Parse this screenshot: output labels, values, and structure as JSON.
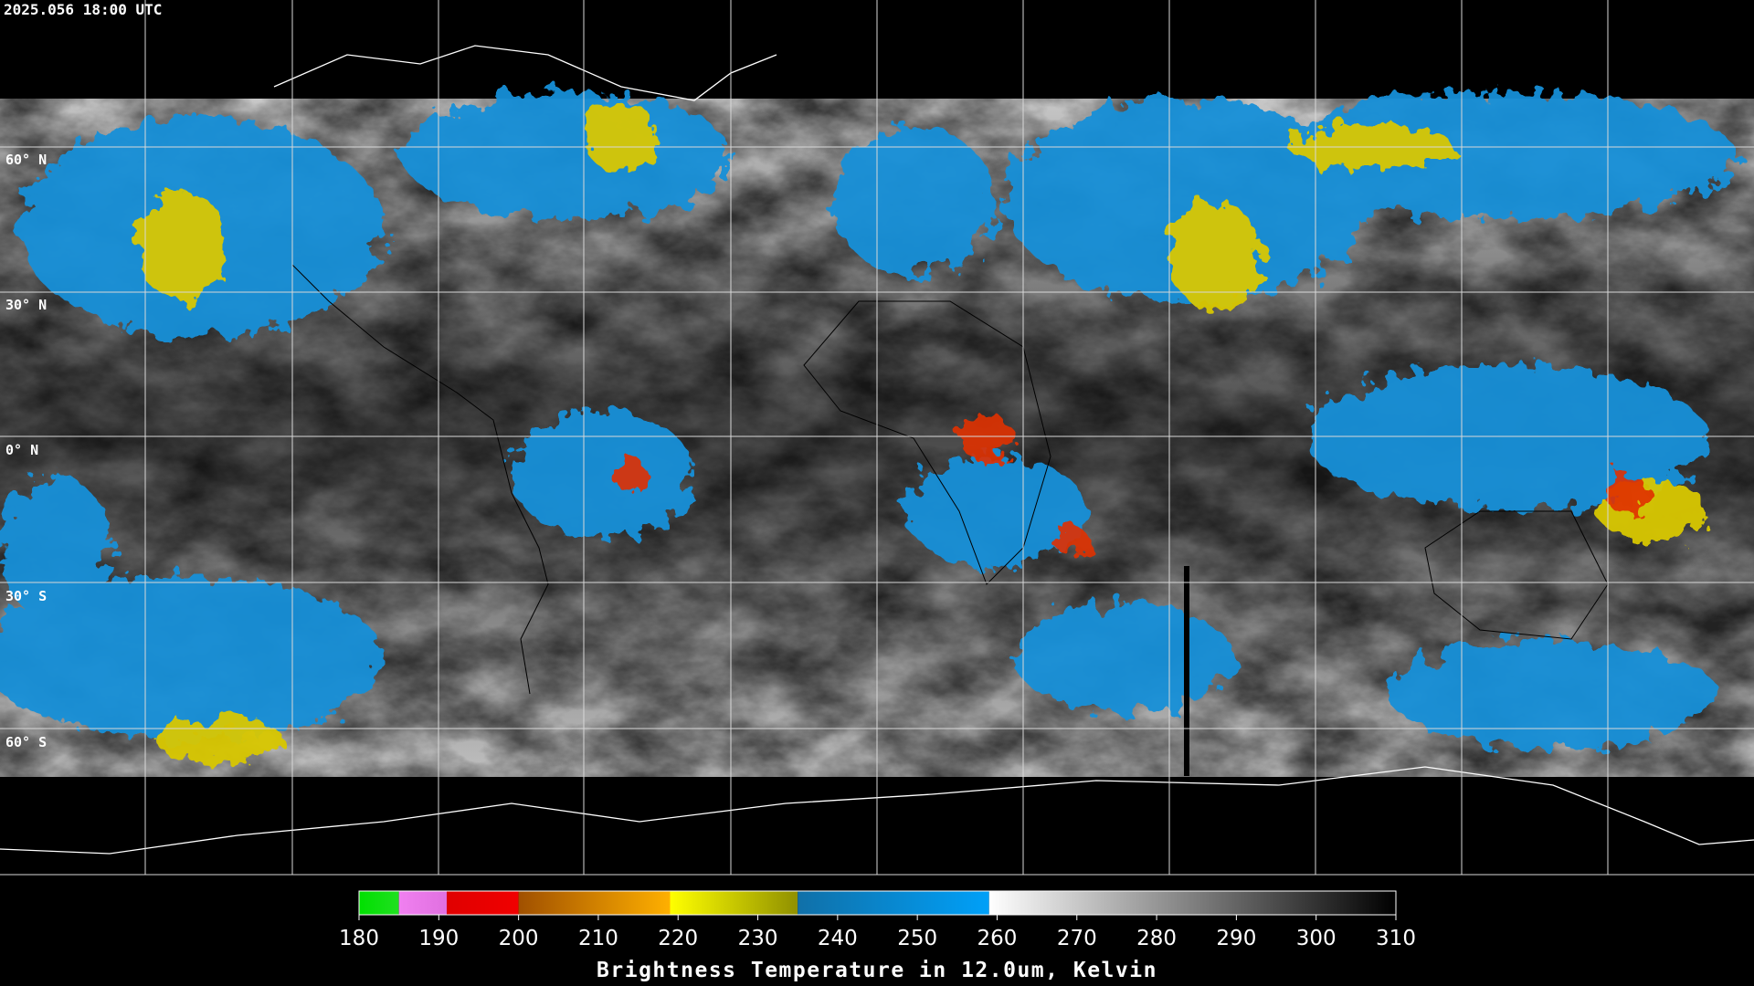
{
  "header": {
    "timestamp": "2025.056 18:00 UTC"
  },
  "latitude_labels": [
    "60° N",
    "30° N",
    "0° N",
    "30° S",
    "60° S"
  ],
  "colorbar": {
    "ticks": [
      180,
      190,
      200,
      210,
      220,
      230,
      240,
      250,
      260,
      270,
      280,
      290,
      300,
      310
    ],
    "title": "Brightness Temperature in 12.0um, Kelvin",
    "segments": [
      {
        "from": 180,
        "to": 185,
        "colors": [
          "#00e000",
          "#20e020"
        ]
      },
      {
        "from": 185,
        "to": 191,
        "colors": [
          "#f080f0",
          "#e070e0"
        ]
      },
      {
        "from": 191,
        "to": 200,
        "colors": [
          "#e00000",
          "#f00000"
        ]
      },
      {
        "from": 200,
        "to": 219,
        "colors": [
          "#a05000",
          "#ffb000"
        ]
      },
      {
        "from": 219,
        "to": 235,
        "colors": [
          "#ffff00",
          "#909000"
        ]
      },
      {
        "from": 235,
        "to": 259,
        "colors": [
          "#1070a8",
          "#00a0f8"
        ]
      },
      {
        "from": 259,
        "to": 310,
        "colors": [
          "#ffffff",
          "#000000"
        ]
      }
    ]
  }
}
